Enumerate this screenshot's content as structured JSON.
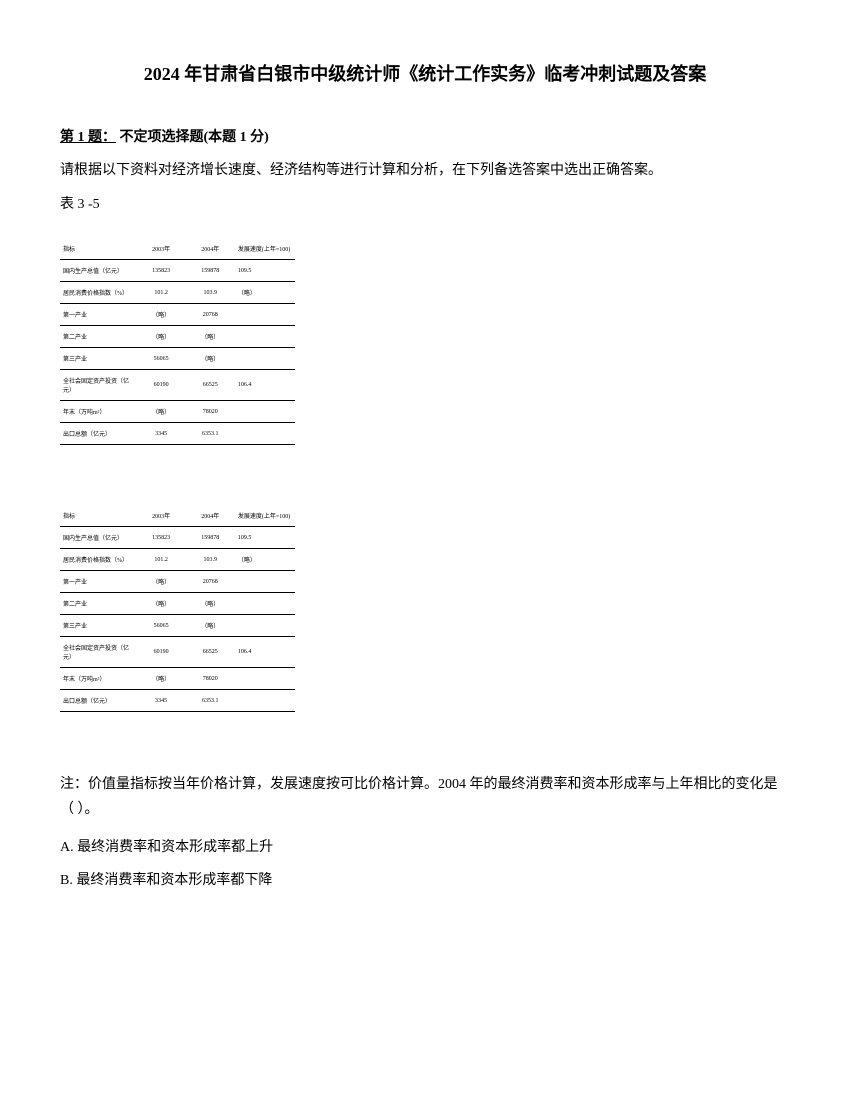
{
  "title": "2024 年甘肃省白银市中级统计师《统计工作实务》临考冲刺试题及答案",
  "question": {
    "number": "第 1 题：",
    "type": "不定项选择题(本题 1 分)",
    "text": "请根据以下资料对经济增长速度、经济结构等进行计算和分析，在下列备选答案中选出正确答案。",
    "table_label": "表 3 -5"
  },
  "table": {
    "headers": {
      "col1": "指标",
      "col2": "2003年",
      "col3": "2004年",
      "col4": "发展速度(上年=100)"
    },
    "rows": [
      {
        "col1": "国内生产总值（亿元）",
        "col2": "135823",
        "col3": "159878",
        "col4": "109.5"
      },
      {
        "col1": "居民消费价格指数（%）",
        "col2": "101.2",
        "col3": "103.9",
        "col4": "（略）"
      },
      {
        "col1": "第一产业",
        "col2": "（略）",
        "col3": "20768",
        "col4": ""
      },
      {
        "col1": "第二产业",
        "col2": "（略）",
        "col3": "（略）",
        "col4": ""
      },
      {
        "col1": "第三产业",
        "col2": "56065",
        "col3": "（略）",
        "col4": ""
      },
      {
        "col1": "全社会固定资产投资（亿元）",
        "col2": "60190",
        "col3": "66525",
        "col4": "106.4"
      },
      {
        "col1": "年末（万吨m²）",
        "col2": "（略）",
        "col3": "78020",
        "col4": ""
      },
      {
        "col1": "出口总额（亿元）",
        "col2": "3345",
        "col3": "6353.1",
        "col4": ""
      }
    ]
  },
  "note": "注：价值量指标按当年价格计算，发展速度按可比价格计算。2004 年的最终消费率和资本形成率与上年相比的变化是（ ）。",
  "options": {
    "A": "A. 最终消费率和资本形成率都上升",
    "B": "B. 最终消费率和资本形成率都下降"
  }
}
